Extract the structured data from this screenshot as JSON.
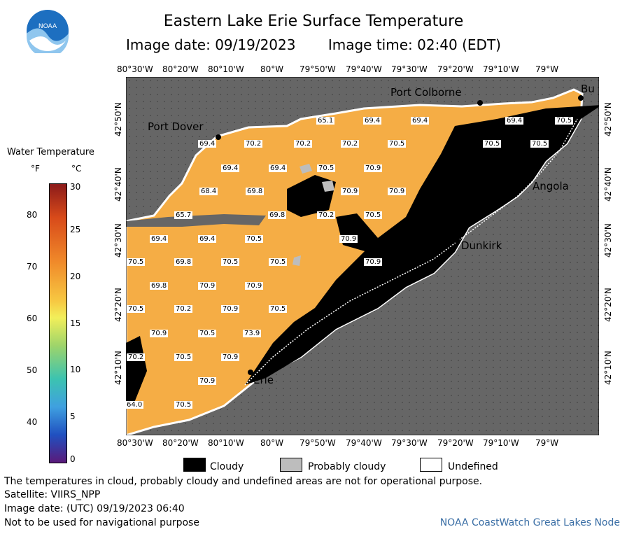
{
  "title": "Eastern Lake Erie Surface Temperature",
  "image_date_label": "Image date: 09/19/2023",
  "image_time_label": "Image time: 02:40 (EDT)",
  "logo_text": "NOAA",
  "lon_ticks": [
    "80°30'W",
    "80°20'W",
    "80°10'W",
    "80°W",
    "79°50'W",
    "79°40'W",
    "79°30'W",
    "79°20'W",
    "79°10'W",
    "79°W"
  ],
  "lat_ticks": [
    "42°50'N",
    "42°40'N",
    "42°30'N",
    "42°20'N",
    "42°10'N"
  ],
  "legend": {
    "title": "Water Temperature",
    "f_label": "°F",
    "c_label": "°C",
    "f_ticks": [
      "80",
      "70",
      "60",
      "50",
      "40"
    ],
    "c_ticks": [
      "30",
      "25",
      "20",
      "15",
      "10",
      "5",
      "0"
    ]
  },
  "cities": [
    "Port Colborne",
    "Port Dover",
    "Angola",
    "Dunkirk",
    "Erie",
    "Bu"
  ],
  "temps": [
    "65.1",
    "69.4",
    "69.4",
    "69.4",
    "69.4",
    "70.2",
    "70.2",
    "70.2",
    "70.5",
    "70.5",
    "70.5",
    "70.5",
    "69.4",
    "69.4",
    "70.5",
    "70.9",
    "68.4",
    "69.8",
    "70.9",
    "70.9",
    "65.7",
    "69.8",
    "70.2",
    "70.5",
    "69.4",
    "69.4",
    "70.5",
    "70.9",
    "70.5",
    "69.8",
    "70.5",
    "70.5",
    "70.9",
    "69.8",
    "70.9",
    "70.9",
    "70.5",
    "70.2",
    "70.9",
    "70.5",
    "70.9",
    "70.5",
    "73.9",
    "70.2",
    "70.5",
    "70.9",
    "70.9",
    "64.0",
    "70.5"
  ],
  "key": {
    "cloudy": "Cloudy",
    "probably_cloudy": "Probably cloudy",
    "undefined": "Undefined"
  },
  "footer": {
    "disclaimer": "The temperatures in cloud, probably cloudy and undefined areas are not for operational purpose.",
    "satellite": "Satellite: VIIRS_NPP",
    "utc": "Image date: (UTC) 09/19/2023  06:40",
    "nav": "Not to be used for navigational purpose",
    "node": "NOAA CoastWatch Great Lakes Node"
  },
  "colors": {
    "water": "#f5ad45",
    "land": "#666666",
    "cloud": "#000000",
    "probably_cloudy": "#bdbdbd",
    "undefined": "#ffffff"
  }
}
